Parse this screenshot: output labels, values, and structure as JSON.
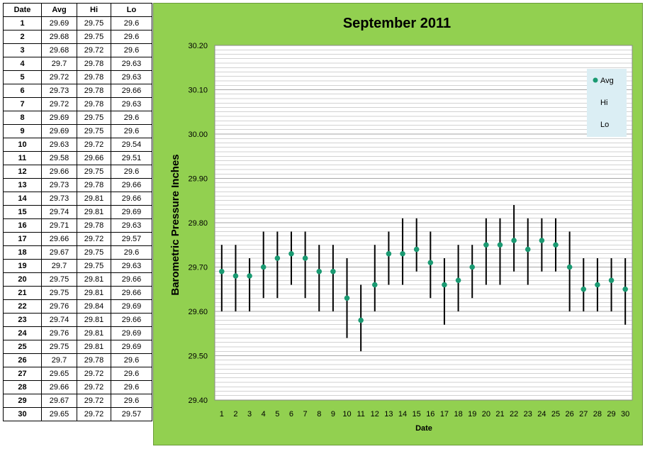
{
  "table": {
    "headers": [
      "Date",
      "Avg",
      "Hi",
      "Lo"
    ],
    "rows": [
      [
        "1",
        "29.69",
        "29.75",
        "29.6"
      ],
      [
        "2",
        "29.68",
        "29.75",
        "29.6"
      ],
      [
        "3",
        "29.68",
        "29.72",
        "29.6"
      ],
      [
        "4",
        "29.7",
        "29.78",
        "29.63"
      ],
      [
        "5",
        "29.72",
        "29.78",
        "29.63"
      ],
      [
        "6",
        "29.73",
        "29.78",
        "29.66"
      ],
      [
        "7",
        "29.72",
        "29.78",
        "29.63"
      ],
      [
        "8",
        "29.69",
        "29.75",
        "29.6"
      ],
      [
        "9",
        "29.69",
        "29.75",
        "29.6"
      ],
      [
        "10",
        "29.63",
        "29.72",
        "29.54"
      ],
      [
        "11",
        "29.58",
        "29.66",
        "29.51"
      ],
      [
        "12",
        "29.66",
        "29.75",
        "29.6"
      ],
      [
        "13",
        "29.73",
        "29.78",
        "29.66"
      ],
      [
        "14",
        "29.73",
        "29.81",
        "29.66"
      ],
      [
        "15",
        "29.74",
        "29.81",
        "29.69"
      ],
      [
        "16",
        "29.71",
        "29.78",
        "29.63"
      ],
      [
        "17",
        "29.66",
        "29.72",
        "29.57"
      ],
      [
        "18",
        "29.67",
        "29.75",
        "29.6"
      ],
      [
        "19",
        "29.7",
        "29.75",
        "29.63"
      ],
      [
        "20",
        "29.75",
        "29.81",
        "29.66"
      ],
      [
        "21",
        "29.75",
        "29.81",
        "29.66"
      ],
      [
        "22",
        "29.76",
        "29.84",
        "29.69"
      ],
      [
        "23",
        "29.74",
        "29.81",
        "29.66"
      ],
      [
        "24",
        "29.76",
        "29.81",
        "29.69"
      ],
      [
        "25",
        "29.75",
        "29.81",
        "29.69"
      ],
      [
        "26",
        "29.7",
        "29.78",
        "29.6"
      ],
      [
        "27",
        "29.65",
        "29.72",
        "29.6"
      ],
      [
        "28",
        "29.66",
        "29.72",
        "29.6"
      ],
      [
        "29",
        "29.67",
        "29.72",
        "29.6"
      ],
      [
        "30",
        "29.65",
        "29.72",
        "29.57"
      ]
    ]
  },
  "chart_data": {
    "type": "scatter",
    "title": "September 2011",
    "xlabel": "Date",
    "ylabel": "Barometric Pressure Inches",
    "ylim": [
      29.4,
      30.2
    ],
    "y_ticks": [
      "29.40",
      "29.50",
      "29.60",
      "29.70",
      "29.80",
      "29.90",
      "30.00",
      "30.10",
      "30.20"
    ],
    "x": [
      1,
      2,
      3,
      4,
      5,
      6,
      7,
      8,
      9,
      10,
      11,
      12,
      13,
      14,
      15,
      16,
      17,
      18,
      19,
      20,
      21,
      22,
      23,
      24,
      25,
      26,
      27,
      28,
      29,
      30
    ],
    "series": [
      {
        "name": "Avg",
        "values": [
          29.69,
          29.68,
          29.68,
          29.7,
          29.72,
          29.73,
          29.72,
          29.69,
          29.69,
          29.63,
          29.58,
          29.66,
          29.73,
          29.73,
          29.74,
          29.71,
          29.66,
          29.67,
          29.7,
          29.75,
          29.75,
          29.76,
          29.74,
          29.76,
          29.75,
          29.7,
          29.65,
          29.66,
          29.67,
          29.65
        ]
      },
      {
        "name": "Hi",
        "values": [
          29.75,
          29.75,
          29.72,
          29.78,
          29.78,
          29.78,
          29.78,
          29.75,
          29.75,
          29.72,
          29.66,
          29.75,
          29.78,
          29.81,
          29.81,
          29.78,
          29.72,
          29.75,
          29.75,
          29.81,
          29.81,
          29.84,
          29.81,
          29.81,
          29.81,
          29.78,
          29.72,
          29.72,
          29.72,
          29.72
        ]
      },
      {
        "name": "Lo",
        "values": [
          29.6,
          29.6,
          29.6,
          29.63,
          29.63,
          29.66,
          29.63,
          29.6,
          29.6,
          29.54,
          29.51,
          29.6,
          29.66,
          29.66,
          29.69,
          29.63,
          29.57,
          29.6,
          29.63,
          29.66,
          29.66,
          29.69,
          29.66,
          29.69,
          29.69,
          29.6,
          29.6,
          29.6,
          29.6,
          29.57
        ]
      }
    ],
    "grid": true,
    "legend_position": "top-right",
    "colors": {
      "panel_background": "#92d050",
      "plot_background": "#ffffff",
      "avg_marker": "#1a9a72",
      "range_line": "#000000",
      "gridline": "#a6a6a6",
      "legend_background": "#dbeef4"
    }
  }
}
